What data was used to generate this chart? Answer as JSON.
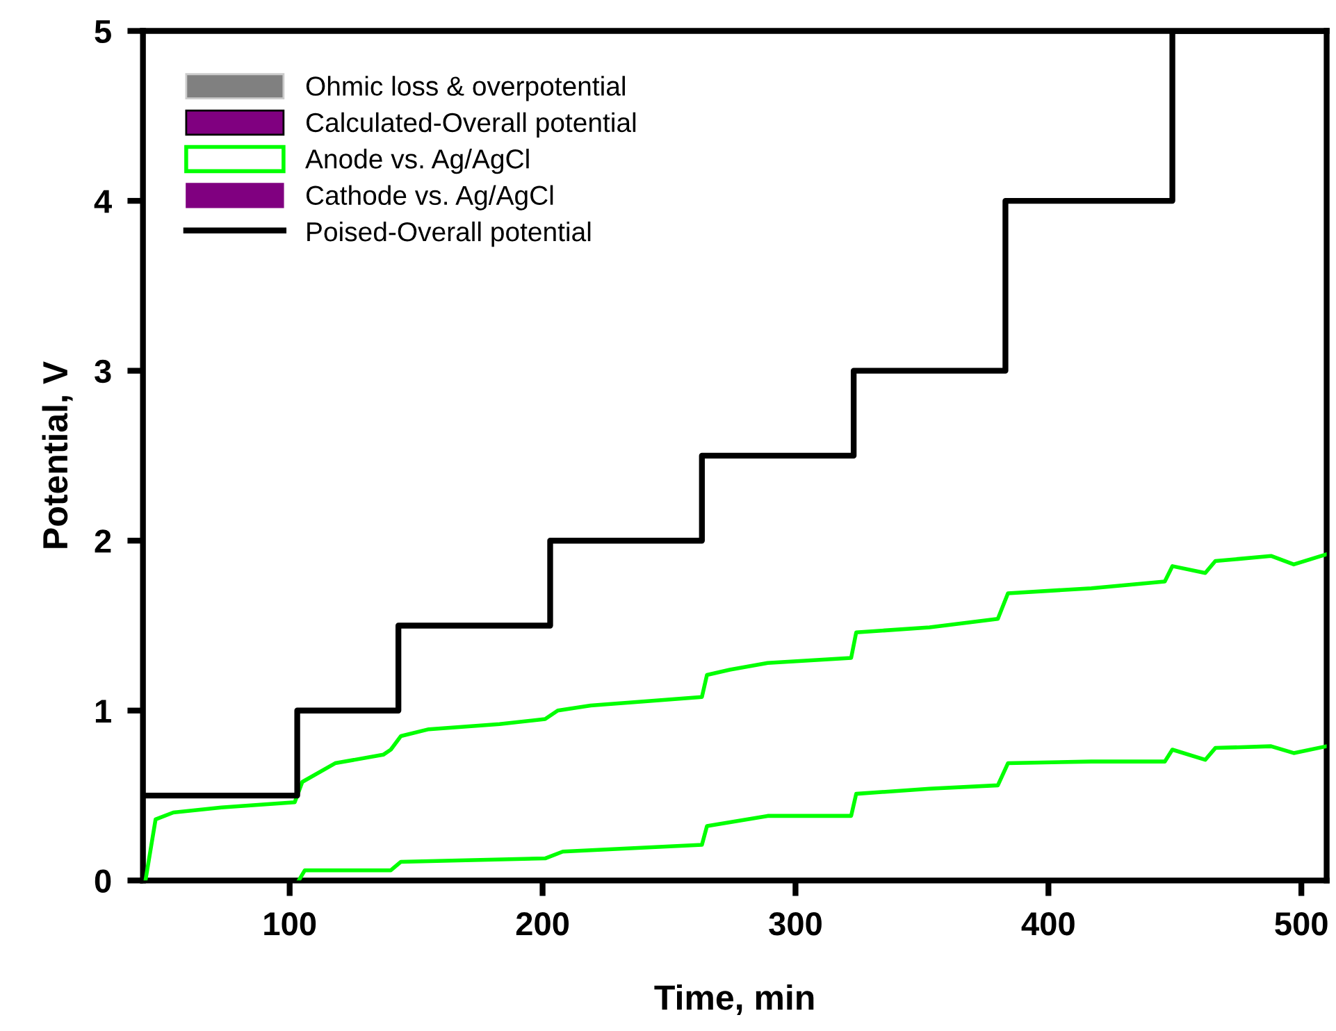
{
  "chart_data": {
    "type": "line",
    "xlabel": "Time, min",
    "ylabel": "Potential, V",
    "xlim": [
      42,
      510
    ],
    "xticks": [
      100,
      200,
      300,
      400,
      500
    ],
    "ylim": [
      0,
      5
    ],
    "yticks": [
      0,
      1,
      2,
      3,
      4,
      5
    ],
    "grid": false,
    "legend": "top left",
    "marker": "none",
    "line_style": "solid",
    "series": [
      {
        "name": "Ohmic loss & overpotential",
        "type": "bar",
        "color": "#808080"
      },
      {
        "name": "Calculated-Overall potential",
        "type": "bar",
        "color": "#800080"
      },
      {
        "name": "Anode vs. Ag/AgCl",
        "color": "#00ff00",
        "x": [
          43,
          47,
          54,
          73,
          102,
          105,
          118,
          137,
          140,
          144,
          155,
          183,
          201,
          206,
          219,
          237,
          263,
          265,
          274,
          289,
          322,
          324,
          353,
          380,
          384,
          417,
          446,
          449,
          462,
          466,
          488,
          497,
          510
        ],
        "values": [
          0,
          0.36,
          0.4,
          0.43,
          0.46,
          0.58,
          0.69,
          0.74,
          0.77,
          0.85,
          0.89,
          0.92,
          0.95,
          1.0,
          1.03,
          1.05,
          1.08,
          1.21,
          1.24,
          1.28,
          1.31,
          1.46,
          1.49,
          1.54,
          1.69,
          1.72,
          1.76,
          1.85,
          1.81,
          1.88,
          1.91,
          1.86,
          1.92
        ]
      },
      {
        "name": "Cathode vs. Ag/AgCl",
        "type": "bar",
        "color": "#800080"
      },
      {
        "name": "Poised-Overall potential",
        "type": "step",
        "color": "#000000",
        "x": [
          42,
          103,
          143,
          203,
          263,
          323,
          383,
          449,
          510
        ],
        "values": [
          0.5,
          1.0,
          1.5,
          2.0,
          2.5,
          3.0,
          4.0,
          5.0,
          5.0
        ]
      },
      {
        "color": "#00ff00",
        "x": [
          103.6,
          106,
          140,
          144,
          201,
          208,
          263,
          265,
          289,
          322,
          324,
          353,
          380,
          384,
          417,
          446,
          449,
          462,
          466,
          488,
          497,
          510
        ],
        "values": [
          0,
          0.06,
          0.06,
          0.11,
          0.13,
          0.17,
          0.21,
          0.32,
          0.38,
          0.38,
          0.51,
          0.54,
          0.56,
          0.69,
          0.7,
          0.7,
          0.77,
          0.71,
          0.78,
          0.79,
          0.75,
          0.79
        ]
      }
    ]
  }
}
